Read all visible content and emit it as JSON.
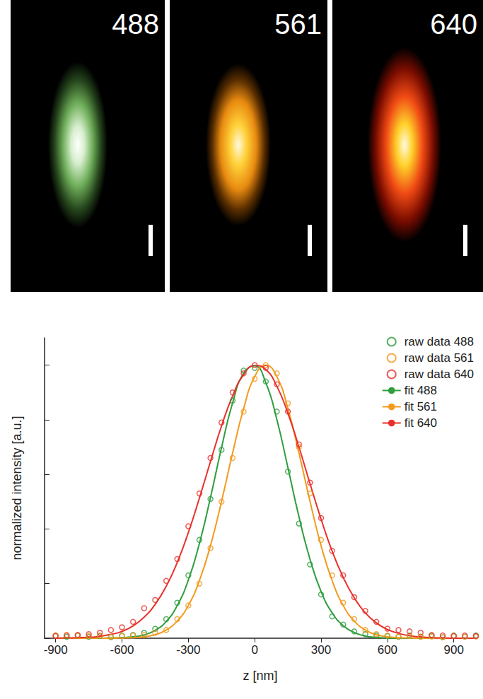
{
  "panels": [
    {
      "label": "488"
    },
    {
      "label": "561"
    },
    {
      "label": "640"
    }
  ],
  "chart_data": {
    "type": "scatter",
    "x_label": "z [nm]",
    "y_label": "normalized intensity [a.u.]",
    "xlim": [
      -950,
      1000
    ],
    "xticks": [
      -900,
      -600,
      -300,
      0,
      300,
      600,
      900
    ],
    "ylim": [
      0,
      1.1
    ],
    "yticks": [
      0,
      0.2,
      0.4,
      0.6,
      0.8,
      1.0
    ],
    "tick_labels": "x",
    "grid": false,
    "legend": "upper right",
    "x": [
      -900,
      -850,
      -800,
      -750,
      -700,
      -650,
      -600,
      -550,
      -500,
      -450,
      -400,
      -350,
      -300,
      -250,
      -200,
      -150,
      -100,
      -50,
      0,
      50,
      100,
      150,
      200,
      250,
      300,
      350,
      400,
      450,
      500,
      550,
      600,
      650,
      700,
      750,
      800,
      850,
      900,
      950,
      1000
    ],
    "series": [
      {
        "name": "raw data 488",
        "type": "scatter",
        "marker": "circle",
        "color": "#2e9e3e",
        "values": [
          0.01,
          0.005,
          0.01,
          0.005,
          0.008,
          0.004,
          0.01,
          0.012,
          0.02,
          0.035,
          0.07,
          0.13,
          0.23,
          0.36,
          0.51,
          0.69,
          0.87,
          0.98,
          0.99,
          0.94,
          0.83,
          0.61,
          0.42,
          0.27,
          0.16,
          0.08,
          0.05,
          0.025,
          0.015,
          0.01,
          0.008,
          0.005,
          0.01,
          0.006,
          0.008,
          0.004,
          0.01,
          0.006,
          0.01
        ]
      },
      {
        "name": "raw data 561",
        "type": "scatter",
        "marker": "circle",
        "color": "#f39a1e",
        "values": [
          0.01,
          0.012,
          0.01,
          0.008,
          0.01,
          0.005,
          0.008,
          0.01,
          0.012,
          0.02,
          0.03,
          0.07,
          0.12,
          0.2,
          0.33,
          0.5,
          0.66,
          0.83,
          0.95,
          1.0,
          0.97,
          0.86,
          0.7,
          0.53,
          0.36,
          0.23,
          0.13,
          0.07,
          0.03,
          0.015,
          0.01,
          0.006,
          0.008,
          0.005,
          0.006,
          0.004,
          0.008,
          0.005,
          0.006
        ]
      },
      {
        "name": "raw data 640",
        "type": "scatter",
        "marker": "circle",
        "color": "#e8302a",
        "values": [
          0.008,
          0.01,
          0.012,
          0.015,
          0.02,
          0.03,
          0.04,
          0.06,
          0.11,
          0.14,
          0.21,
          0.29,
          0.41,
          0.53,
          0.66,
          0.79,
          0.9,
          0.97,
          1.0,
          0.99,
          0.93,
          0.83,
          0.71,
          0.57,
          0.44,
          0.32,
          0.23,
          0.15,
          0.1,
          0.06,
          0.035,
          0.03,
          0.025,
          0.02,
          0.012,
          0.01,
          0.008,
          0.01,
          0.008
        ]
      },
      {
        "name": "fit 488",
        "type": "line",
        "line_style": "solid",
        "color": "#2e9e3e",
        "values": [
          0,
          0,
          0,
          0,
          0,
          0.001,
          0.002,
          0.005,
          0.012,
          0.029,
          0.061,
          0.12,
          0.213,
          0.347,
          0.515,
          0.698,
          0.862,
          0.971,
          0.998,
          0.936,
          0.801,
          0.625,
          0.445,
          0.289,
          0.171,
          0.093,
          0.046,
          0.021,
          0.008,
          0.003,
          0.001,
          0,
          0,
          0,
          0,
          0,
          0,
          0,
          0
        ]
      },
      {
        "name": "fit 561",
        "type": "line",
        "line_style": "solid",
        "color": "#f39a1e",
        "values": [
          0,
          0,
          0,
          0,
          0,
          0,
          0.001,
          0.002,
          0.005,
          0.013,
          0.03,
          0.063,
          0.12,
          0.211,
          0.339,
          0.501,
          0.678,
          0.841,
          0.958,
          1.0,
          0.958,
          0.841,
          0.678,
          0.501,
          0.339,
          0.211,
          0.12,
          0.063,
          0.03,
          0.013,
          0.005,
          0.002,
          0.001,
          0,
          0,
          0,
          0,
          0,
          0
        ]
      },
      {
        "name": "fit 640",
        "type": "line",
        "line_style": "solid",
        "color": "#e8302a",
        "values": [
          0,
          0.001,
          0.002,
          0.003,
          0.007,
          0.014,
          0.025,
          0.045,
          0.077,
          0.124,
          0.19,
          0.278,
          0.387,
          0.513,
          0.647,
          0.777,
          0.887,
          0.965,
          0.999,
          0.984,
          0.923,
          0.824,
          0.7,
          0.566,
          0.436,
          0.319,
          0.223,
          0.148,
          0.093,
          0.056,
          0.032,
          0.018,
          0.009,
          0.005,
          0.002,
          0.001,
          0,
          0,
          0
        ]
      }
    ]
  }
}
